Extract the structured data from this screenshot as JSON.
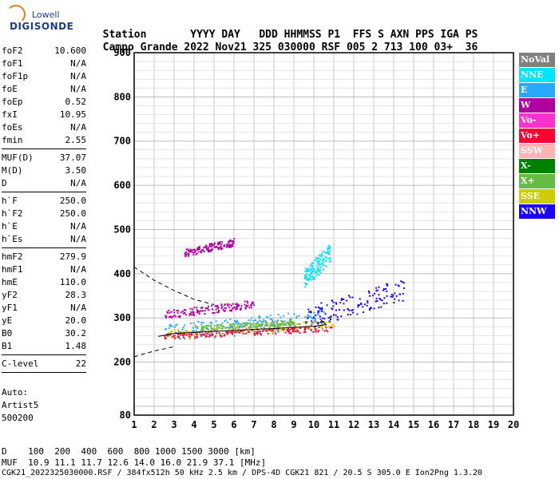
{
  "logo": {
    "top": "Lowell",
    "bottom": "DIGISONDE"
  },
  "header": {
    "labels": [
      "Station",
      "YYYY",
      "DAY",
      "DDD",
      "HHMMSS",
      "P1",
      "FFS",
      "S",
      "AXN",
      "PPS",
      "IGA",
      "PS"
    ],
    "values": [
      "Campo Grande",
      "2022",
      "Nov21",
      "325",
      "030000",
      "RSF",
      "005",
      "2",
      "713",
      "100",
      "03+",
      "36"
    ]
  },
  "params": [
    [
      {
        "k": "foF2",
        "v": "10.600"
      },
      {
        "k": "foF1",
        "v": "N/A"
      },
      {
        "k": "foF1p",
        "v": "N/A"
      },
      {
        "k": "foE",
        "v": "N/A"
      },
      {
        "k": "foEp",
        "v": "0.52"
      },
      {
        "k": "fxI",
        "v": "10.95"
      },
      {
        "k": "foEs",
        "v": "N/A"
      },
      {
        "k": "fmin",
        "v": "2.55"
      }
    ],
    [
      {
        "k": "MUF(D)",
        "v": "37.07"
      },
      {
        "k": "M(D)",
        "v": "3.50"
      },
      {
        "k": "D",
        "v": "N/A"
      }
    ],
    [
      {
        "k": "h`F",
        "v": "250.0"
      },
      {
        "k": "h`F2",
        "v": "250.0"
      },
      {
        "k": "h`E",
        "v": "N/A"
      },
      {
        "k": "h`Es",
        "v": "N/A"
      }
    ],
    [
      {
        "k": "hmF2",
        "v": "279.9"
      },
      {
        "k": "hmF1",
        "v": "N/A"
      },
      {
        "k": "hmE",
        "v": "110.0"
      },
      {
        "k": "yF2",
        "v": "28.3"
      },
      {
        "k": "yF1",
        "v": "N/A"
      },
      {
        "k": "yE",
        "v": "20.0"
      },
      {
        "k": "B0",
        "v": "30.2"
      },
      {
        "k": "B1",
        "v": "1.48"
      }
    ],
    [
      {
        "k": "C-level",
        "v": "22"
      }
    ]
  ],
  "auto": {
    "line1": "Auto:",
    "line2": "Artist5",
    "line3": "500200"
  },
  "legend": [
    {
      "label": "NoVal",
      "color": "#808080"
    },
    {
      "label": "NNE",
      "color": "#00e5ff"
    },
    {
      "label": "E",
      "color": "#2aa8ff"
    },
    {
      "label": "W",
      "color": "#b000a0"
    },
    {
      "label": "Vo-",
      "color": "#ff33cc"
    },
    {
      "label": "Vo+",
      "color": "#ff0033"
    },
    {
      "label": "SSW",
      "color": "#ffb3b3"
    },
    {
      "label": "X-",
      "color": "#008000"
    },
    {
      "label": "X+",
      "color": "#66bb44"
    },
    {
      "label": "SSE",
      "color": "#cccc00"
    },
    {
      "label": "NNW",
      "color": "#1a00ff"
    }
  ],
  "chart_data": {
    "type": "scatter",
    "title": "",
    "xlabel": "",
    "ylabel": "",
    "xlim": [
      1,
      20
    ],
    "ylim": [
      80,
      900
    ],
    "x_ticks": [
      1,
      2,
      3,
      4,
      5,
      6,
      7,
      8,
      9,
      10,
      11,
      12,
      13,
      14,
      15,
      16,
      17,
      18,
      19,
      20
    ],
    "y_ticks": [
      80,
      200,
      300,
      400,
      500,
      600,
      700,
      800,
      900
    ],
    "grid": true,
    "trace_clusters": [
      {
        "series": "NoVal",
        "x": [
          2.5,
          10.6
        ],
        "y": [
          255,
          300
        ]
      },
      {
        "series": "W",
        "x": [
          2.5,
          7.0
        ],
        "y": [
          305,
          345
        ]
      },
      {
        "series": "W",
        "x": [
          3.5,
          6.0
        ],
        "y": [
          445,
          485
        ]
      },
      {
        "series": "E",
        "x": [
          2.5,
          10.5
        ],
        "y": [
          270,
          325
        ]
      },
      {
        "series": "SSE",
        "x": [
          2.5,
          11.0
        ],
        "y": [
          262,
          300
        ]
      },
      {
        "series": "NNW",
        "x": [
          9.5,
          14.5
        ],
        "y": [
          290,
          400
        ]
      },
      {
        "series": "NNE",
        "x": [
          9.5,
          10.8
        ],
        "y": [
          380,
          480
        ]
      },
      {
        "series": "Vo+",
        "x": [
          2.5,
          11.0
        ],
        "y": [
          258,
          285
        ]
      },
      {
        "series": "X+",
        "x": [
          4.0,
          9.0
        ],
        "y": [
          275,
          300
        ]
      }
    ],
    "lines": [
      {
        "name": "lower-profile",
        "dashed": false,
        "points": [
          [
            2.2,
            258
          ],
          [
            3.0,
            265
          ],
          [
            4.5,
            268
          ],
          [
            6,
            272
          ],
          [
            8,
            276
          ],
          [
            10,
            281
          ],
          [
            10.6,
            285
          ],
          [
            10.3,
            298
          ]
        ]
      },
      {
        "name": "upper-dash",
        "dashed": true,
        "points": [
          [
            1,
            415
          ],
          [
            2,
            385
          ],
          [
            3,
            362
          ],
          [
            4,
            342
          ],
          [
            5,
            330
          ]
        ]
      },
      {
        "name": "lower-dash",
        "dashed": true,
        "points": [
          [
            1,
            212
          ],
          [
            2,
            225
          ],
          [
            3,
            235
          ]
        ]
      }
    ]
  },
  "footer": {
    "line1": "D    100  200  400  600  800 1000 1500 3000 [km]",
    "line2": "MUF  10.9 11.1 11.7 12.6 14.0 16.0 21.9 37.1 [MHz]",
    "line3": "CGK21_2022325030000.RSF / 384fx512h 50 kHz 2.5 km / DPS-4D CGK21 821 / 20.5 S 305.0 E Ion2Png 1.3.20"
  }
}
